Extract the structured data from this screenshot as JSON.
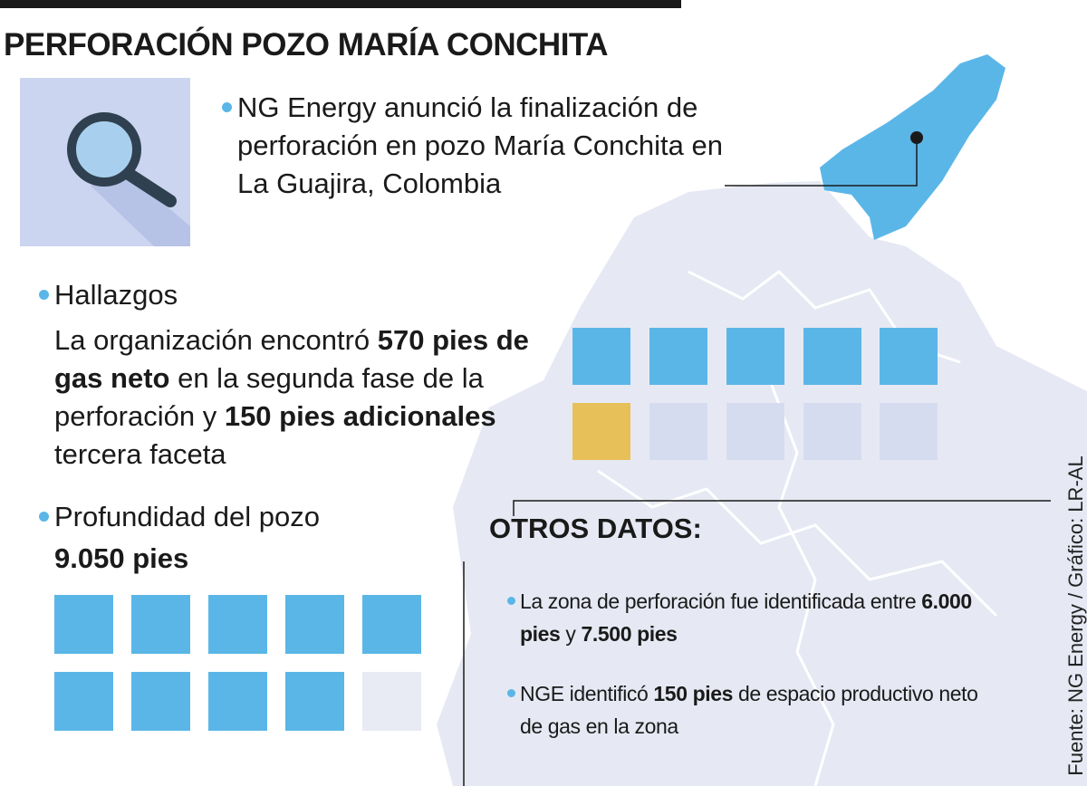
{
  "title": "PERFORACIÓN POZO MARÍA CONCHITA",
  "intro": "NG Energy anunció la finalización de perforación en pozo María Conchita en La Guajira, Colombia",
  "findings": {
    "heading": "Hallazgos",
    "text": [
      {
        "text": "La organización encontró "
      },
      {
        "text": "570 pies de gas neto",
        "bold": true
      },
      {
        "text": " en la segunda fase de la perforación y "
      },
      {
        "text": "150 pies adicionales",
        "bold": true
      },
      {
        "text": " tercera faceta"
      }
    ]
  },
  "depth": {
    "heading": "Profundidad del pozo",
    "value": "9.050 pies"
  },
  "other_data": {
    "heading": "OTROS DATOS:",
    "items": [
      [
        {
          "text": "La zona de perforación fue identificada entre "
        },
        {
          "text": "6.000 pies",
          "bold": true
        },
        {
          "text": " y "
        },
        {
          "text": "7.500 pies",
          "bold": true
        }
      ],
      [
        {
          "text": "NGE identificó "
        },
        {
          "text": "150 pies",
          "bold": true
        },
        {
          "text": " de espacio productivo neto de gas en la zona"
        }
      ]
    ]
  },
  "source": "Fuente: NG Energy / Gráfico: LR-AL"
}
